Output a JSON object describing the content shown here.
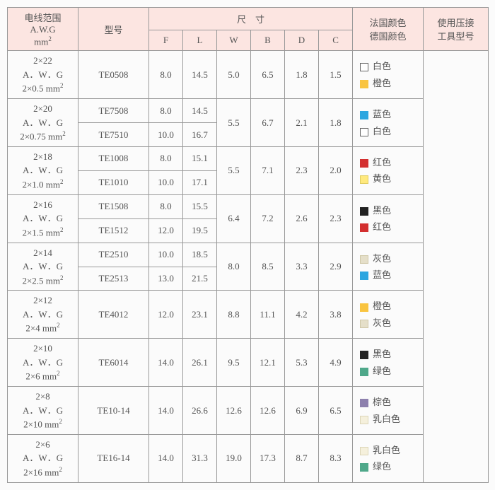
{
  "headers": {
    "wire": "电线范围<br>A.W.G<br>mm<sup>2</sup>",
    "model": "型号",
    "dim": "尺　寸",
    "F": "F",
    "L": "L",
    "W": "W",
    "B": "B",
    "D": "D",
    "C": "C",
    "colors": "法国颜色<br>德国颜色",
    "tool": "使用压接<br>工具型号"
  },
  "col_widths": {
    "wire": 100,
    "model": 100,
    "dim": 48,
    "colors": 100,
    "tool": 92
  },
  "swatches": {
    "white": {
      "bg": "#ffffff",
      "border": "#666"
    },
    "orange": {
      "bg": "#f9c440",
      "border": "#f9c440"
    },
    "blue": {
      "bg": "#2ca6e0",
      "border": "#2ca6e0"
    },
    "red": {
      "bg": "#d32f2f",
      "border": "#d32f2f"
    },
    "yellow": {
      "bg": "#ffe97d",
      "border": "#e0cc60"
    },
    "black": {
      "bg": "#222222",
      "border": "#222222"
    },
    "grayb": {
      "bg": "#e5dfc9",
      "border": "#d0c8a8"
    },
    "green": {
      "bg": "#4fa88a",
      "border": "#4fa88a"
    },
    "brown": {
      "bg": "#8d80ad",
      "border": "#8d80ad"
    },
    "cream": {
      "bg": "#f5f0dc",
      "border": "#ddd6b8"
    }
  },
  "color_names": {
    "white": "白色",
    "orange": "橙色",
    "blue": "蓝色",
    "red": "红色",
    "yellow": "黄色",
    "black": "黑色",
    "gray": "灰色",
    "green": "绿色",
    "brown": "棕色",
    "cream": "乳白色"
  },
  "groups": [
    {
      "wire": "2×22<br>A．W．G<br>2×0.5 mm<sup>2</sup>",
      "rows": [
        {
          "model": "TE0508",
          "F": "8.0",
          "L": "14.5",
          "W": "5.0",
          "B": "6.5",
          "D": "1.8",
          "C": "1.5"
        }
      ],
      "colors": [
        {
          "sw": "white",
          "txt": "white"
        },
        {
          "sw": "orange",
          "txt": "orange"
        }
      ]
    },
    {
      "wire": "2×20<br>A．W．G<br>2×0.75 mm<sup>2</sup>",
      "rows": [
        {
          "model": "TE7508",
          "F": "8.0",
          "L": "14.5"
        },
        {
          "model": "TE7510",
          "F": "10.0",
          "L": "16.7"
        }
      ],
      "shared": {
        "W": "5.5",
        "B": "6.7",
        "D": "2.1",
        "C": "1.8"
      },
      "colors": [
        {
          "sw": "blue",
          "txt": "blue"
        },
        {
          "sw": "white",
          "txt": "white"
        }
      ]
    },
    {
      "wire": "2×18<br>A．W．G<br>2×1.0 mm<sup>2</sup>",
      "rows": [
        {
          "model": "TE1008",
          "F": "8.0",
          "L": "15.1"
        },
        {
          "model": "TE1010",
          "F": "10.0",
          "L": "17.1"
        }
      ],
      "shared": {
        "W": "5.5",
        "B": "7.1",
        "D": "2.3",
        "C": "2.0"
      },
      "colors": [
        {
          "sw": "red",
          "txt": "red"
        },
        {
          "sw": "yellow",
          "txt": "yellow"
        }
      ]
    },
    {
      "wire": "2×16<br>A．W．G<br>2×1.5 mm<sup>2</sup>",
      "rows": [
        {
          "model": "TE1508",
          "F": "8.0",
          "L": "15.5"
        },
        {
          "model": "TE1512",
          "F": "12.0",
          "L": "19.5"
        }
      ],
      "shared": {
        "W": "6.4",
        "B": "7.2",
        "D": "2.6",
        "C": "2.3"
      },
      "colors": [
        {
          "sw": "black",
          "txt": "black"
        },
        {
          "sw": "red",
          "txt": "red"
        }
      ]
    },
    {
      "wire": "2×14<br>A．W．G<br>2×2.5 mm<sup>2</sup>",
      "rows": [
        {
          "model": "TE2510",
          "F": "10.0",
          "L": "18.5"
        },
        {
          "model": "TE2513",
          "F": "13.0",
          "L": "21.5"
        }
      ],
      "shared": {
        "W": "8.0",
        "B": "8.5",
        "D": "3.3",
        "C": "2.9"
      },
      "colors": [
        {
          "sw": "grayb",
          "txt": "gray"
        },
        {
          "sw": "blue",
          "txt": "blue"
        }
      ]
    },
    {
      "wire": "2×12<br>A．W．G<br>2×4 mm<sup>2</sup>",
      "rows": [
        {
          "model": "TE4012",
          "F": "12.0",
          "L": "23.1",
          "W": "8.8",
          "B": "11.1",
          "D": "4.2",
          "C": "3.8"
        }
      ],
      "colors": [
        {
          "sw": "orange",
          "txt": "orange"
        },
        {
          "sw": "grayb",
          "txt": "gray"
        }
      ]
    },
    {
      "wire": "2×10<br>A．W．G<br>2×6 mm<sup>2</sup>",
      "rows": [
        {
          "model": "TE6014",
          "F": "14.0",
          "L": "26.1",
          "W": "9.5",
          "B": "12.1",
          "D": "5.3",
          "C": "4.9"
        }
      ],
      "colors": [
        {
          "sw": "black",
          "txt": "black"
        },
        {
          "sw": "green",
          "txt": "green"
        }
      ]
    },
    {
      "wire": "2×8<br>A．W．G<br>2×10 mm<sup>2</sup>",
      "rows": [
        {
          "model": "TE10-14",
          "F": "14.0",
          "L": "26.6",
          "W": "12.6",
          "B": "12.6",
          "D": "6.9",
          "C": "6.5"
        }
      ],
      "colors": [
        {
          "sw": "brown",
          "txt": "brown"
        },
        {
          "sw": "cream",
          "txt": "cream"
        }
      ]
    },
    {
      "wire": "2×6<br>A．W．G<br>2×16 mm<sup>2</sup>",
      "rows": [
        {
          "model": "TE16-14",
          "F": "14.0",
          "L": "31.3",
          "W": "19.0",
          "B": "17.3",
          "D": "8.7",
          "C": "8.3"
        }
      ],
      "colors": [
        {
          "sw": "cream",
          "txt": "cream"
        },
        {
          "sw": "green",
          "txt": "green"
        }
      ]
    }
  ]
}
